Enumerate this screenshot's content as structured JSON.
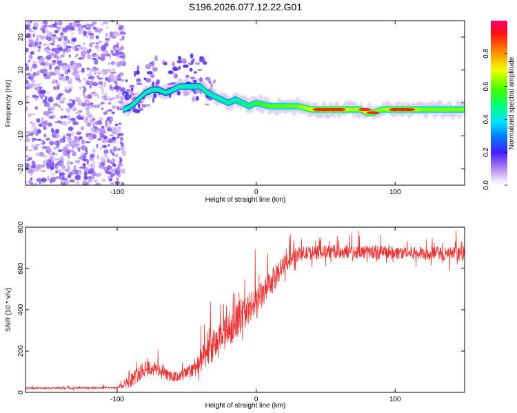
{
  "title": "S196.2026.077.12.22.G01",
  "chart_data": [
    {
      "type": "heatmap",
      "name": "spectrogram",
      "xlabel": "Height of straight line (km)",
      "ylabel": "Frequency (Hz)",
      "xlim": [
        -166,
        150
      ],
      "ylim": [
        -25,
        25
      ],
      "xticks": [
        -100,
        0,
        100
      ],
      "yticks": [
        -20,
        -10,
        0,
        10,
        20
      ],
      "colorbar": {
        "label": "Normalized spectral amplitude",
        "range": [
          0,
          1
        ],
        "ticks": [
          "0.0",
          "0.2",
          "0.4",
          "0.6",
          "0.8"
        ]
      },
      "noise_region_x": [
        -166,
        -95
      ],
      "ridge": [
        {
          "x": -95,
          "y": -2,
          "amp": 0.35
        },
        {
          "x": -90,
          "y": -1,
          "amp": 0.3
        },
        {
          "x": -85,
          "y": 1,
          "amp": 0.3
        },
        {
          "x": -80,
          "y": 3,
          "amp": 0.3
        },
        {
          "x": -75,
          "y": 4,
          "amp": 0.35
        },
        {
          "x": -70,
          "y": 4,
          "amp": 0.35
        },
        {
          "x": -65,
          "y": 3,
          "amp": 0.3
        },
        {
          "x": -60,
          "y": 4,
          "amp": 0.35
        },
        {
          "x": -55,
          "y": 5,
          "amp": 0.4
        },
        {
          "x": -50,
          "y": 5,
          "amp": 0.4
        },
        {
          "x": -45,
          "y": 5,
          "amp": 0.4
        },
        {
          "x": -40,
          "y": 5,
          "amp": 0.4
        },
        {
          "x": -35,
          "y": 3,
          "amp": 0.4
        },
        {
          "x": -30,
          "y": 2,
          "amp": 0.45
        },
        {
          "x": -25,
          "y": 1,
          "amp": 0.45
        },
        {
          "x": -20,
          "y": 0,
          "amp": 0.45
        },
        {
          "x": -15,
          "y": 1,
          "amp": 0.45
        },
        {
          "x": -10,
          "y": 0,
          "amp": 0.5
        },
        {
          "x": -5,
          "y": -1,
          "amp": 0.5
        },
        {
          "x": 0,
          "y": 0,
          "amp": 0.55
        },
        {
          "x": 10,
          "y": -1,
          "amp": 0.6
        },
        {
          "x": 20,
          "y": -1,
          "amp": 0.6
        },
        {
          "x": 30,
          "y": -1,
          "amp": 0.65
        },
        {
          "x": 40,
          "y": -2,
          "amp": 0.8
        },
        {
          "x": 50,
          "y": -2,
          "amp": 0.85
        },
        {
          "x": 60,
          "y": -2,
          "amp": 0.85
        },
        {
          "x": 70,
          "y": -2,
          "amp": 0.7
        },
        {
          "x": 75,
          "y": -2,
          "amp": 0.75
        },
        {
          "x": 80,
          "y": -3,
          "amp": 0.8
        },
        {
          "x": 85,
          "y": -3,
          "amp": 0.8
        },
        {
          "x": 90,
          "y": -2,
          "amp": 0.65
        },
        {
          "x": 95,
          "y": -2,
          "amp": 0.75
        },
        {
          "x": 100,
          "y": -2,
          "amp": 0.75
        },
        {
          "x": 110,
          "y": -2,
          "amp": 0.8
        },
        {
          "x": 120,
          "y": -2,
          "amp": 0.65
        },
        {
          "x": 130,
          "y": -2,
          "amp": 0.65
        },
        {
          "x": 140,
          "y": -2,
          "amp": 0.65
        },
        {
          "x": 150,
          "y": -2,
          "amp": 0.65
        }
      ],
      "hot_spots": [
        {
          "x": 45,
          "y": -2
        },
        {
          "x": 50,
          "y": -2
        },
        {
          "x": 55,
          "y": -2
        },
        {
          "x": 60,
          "y": -2
        },
        {
          "x": 78,
          "y": -2
        },
        {
          "x": 84,
          "y": -3
        },
        {
          "x": 100,
          "y": -2
        },
        {
          "x": 105,
          "y": -2
        },
        {
          "x": 110,
          "y": -2
        }
      ]
    },
    {
      "type": "line",
      "name": "snr",
      "xlabel": "Height of straight line (km)",
      "ylabel": "SNR (10 * v/v)",
      "xlim": [
        -166,
        150
      ],
      "ylim": [
        0,
        800
      ],
      "xticks": [
        -100,
        0,
        100
      ],
      "yticks": [
        0,
        200,
        400,
        600,
        800
      ],
      "color": "#e83232",
      "envelope": [
        {
          "x": -166,
          "base": 20,
          "amp": 8
        },
        {
          "x": -100,
          "base": 22,
          "amp": 10
        },
        {
          "x": -90,
          "base": 60,
          "amp": 70
        },
        {
          "x": -80,
          "base": 120,
          "amp": 90
        },
        {
          "x": -70,
          "base": 110,
          "amp": 70
        },
        {
          "x": -60,
          "base": 70,
          "amp": 50
        },
        {
          "x": -50,
          "base": 90,
          "amp": 60
        },
        {
          "x": -40,
          "base": 150,
          "amp": 120
        },
        {
          "x": -30,
          "base": 230,
          "amp": 160
        },
        {
          "x": -20,
          "base": 300,
          "amp": 170
        },
        {
          "x": -10,
          "base": 380,
          "amp": 170
        },
        {
          "x": 0,
          "base": 430,
          "amp": 150
        },
        {
          "x": 10,
          "base": 520,
          "amp": 130
        },
        {
          "x": 20,
          "base": 620,
          "amp": 90
        },
        {
          "x": 30,
          "base": 670,
          "amp": 70
        },
        {
          "x": 50,
          "base": 680,
          "amp": 65
        },
        {
          "x": 80,
          "base": 680,
          "amp": 65
        },
        {
          "x": 110,
          "base": 675,
          "amp": 65
        },
        {
          "x": 150,
          "base": 670,
          "amp": 70
        }
      ]
    }
  ]
}
